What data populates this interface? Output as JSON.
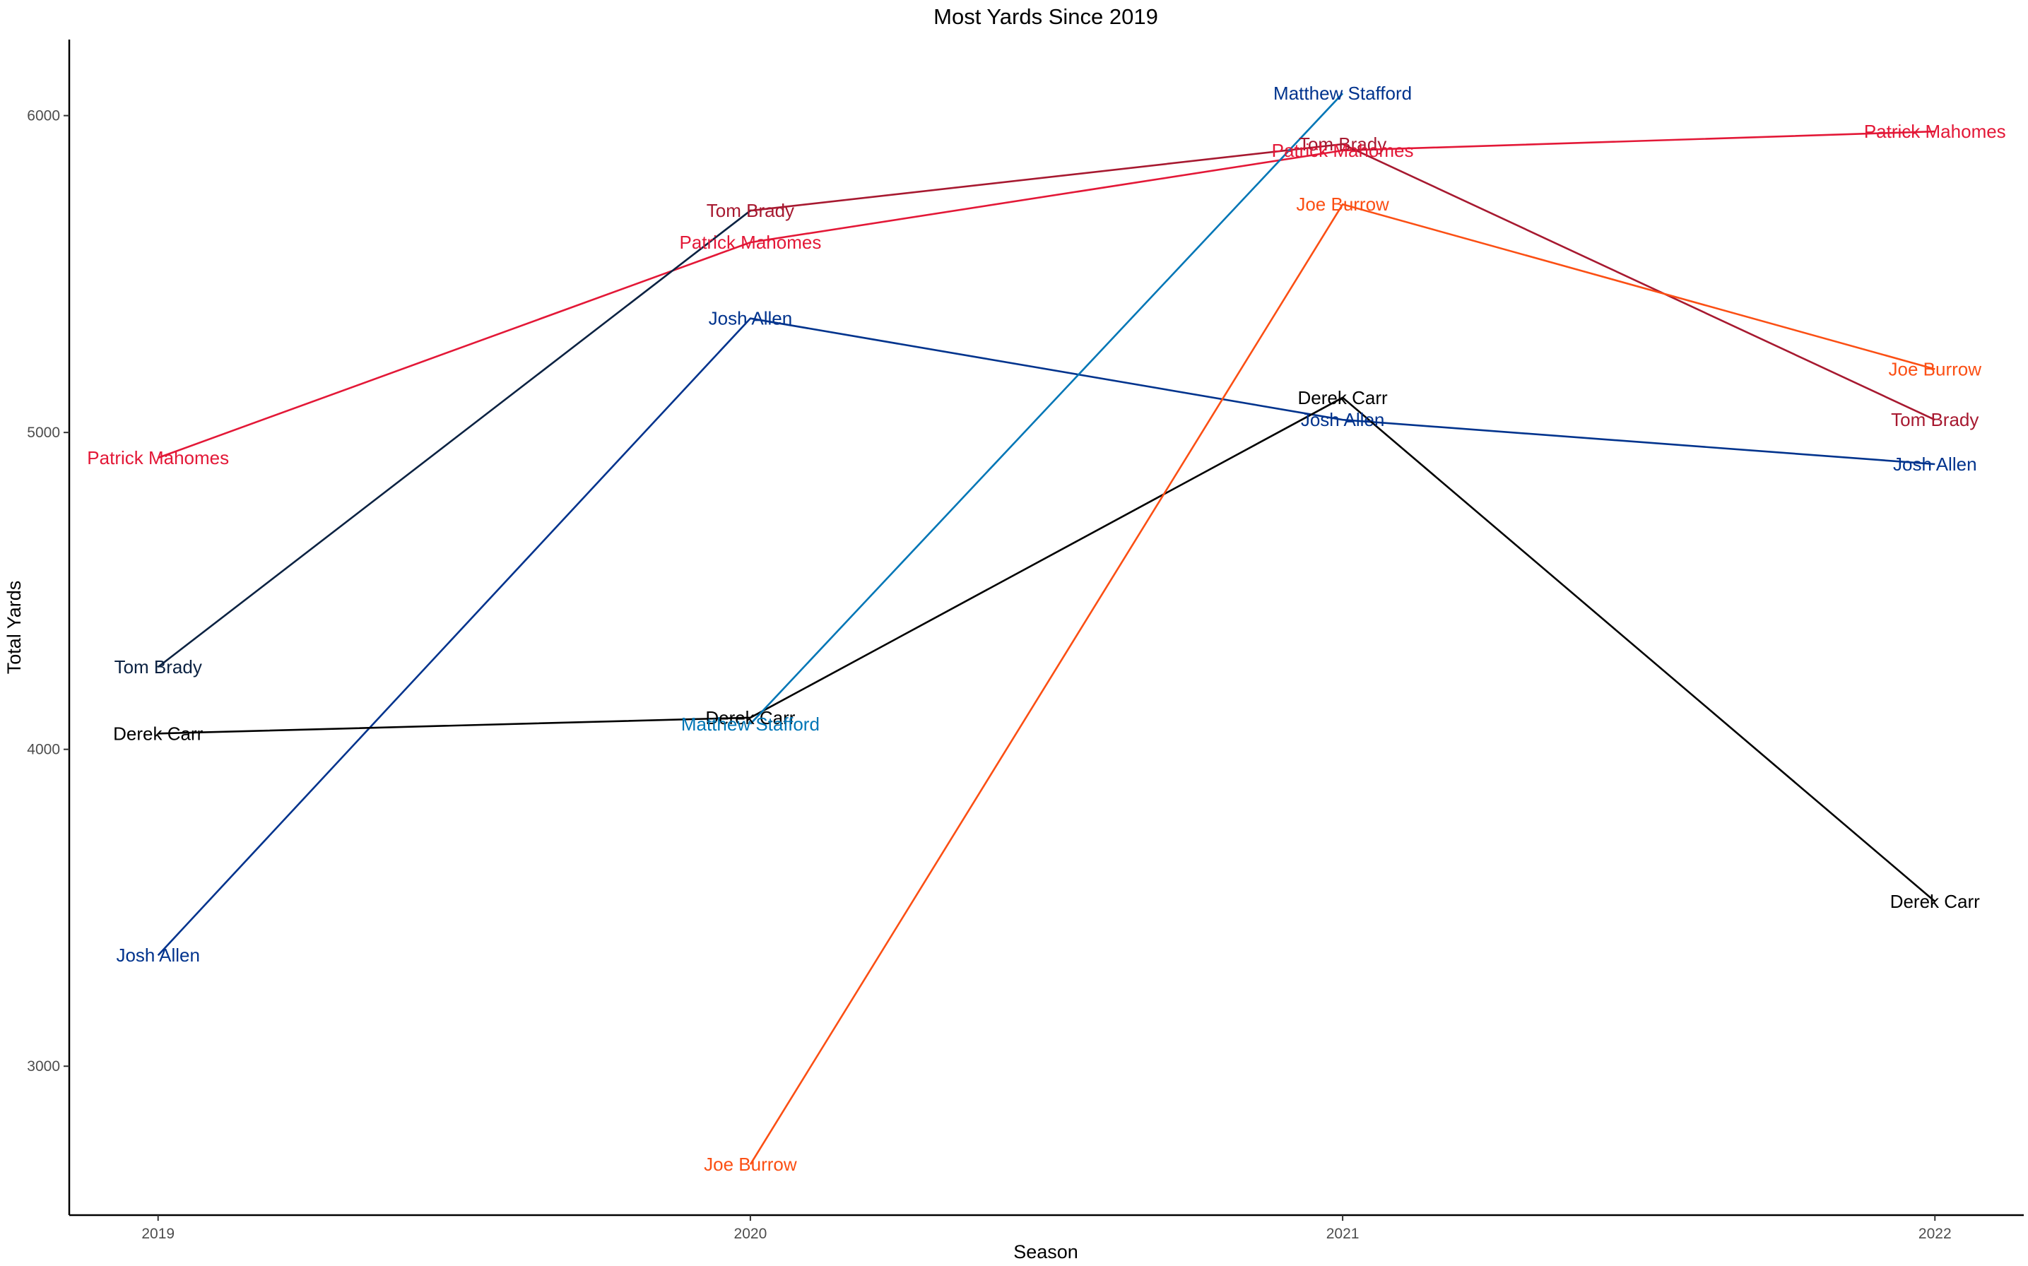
{
  "chart_data": {
    "type": "line",
    "title": "Most Yards Since 2019",
    "xlabel": "Season",
    "ylabel": "Total Yards",
    "x": [
      "2019",
      "2020",
      "2021",
      "2022"
    ],
    "xlim": [
      2018.85,
      2022.15
    ],
    "ylim": [
      2530,
      6240
    ],
    "y_ticks": [
      3000,
      4000,
      5000,
      6000
    ],
    "grid": false,
    "legend": "none",
    "series": [
      {
        "name": "Patrick Mahomes",
        "color": "#E31837",
        "points": [
          [
            2019,
            4920
          ],
          [
            2020,
            5600
          ],
          [
            2021,
            5890
          ],
          [
            2022,
            5950
          ]
        ]
      },
      {
        "name": "Tom Brady",
        "color": "#A71930",
        "points": [
          [
            2020,
            5700
          ],
          [
            2021,
            5910
          ],
          [
            2022,
            5040
          ]
        ]
      },
      {
        "name": "Tom Brady",
        "color": "#0B2242",
        "points": [
          [
            2019,
            4260
          ],
          [
            2020,
            5700
          ]
        ]
      },
      {
        "name": "Josh Allen",
        "color": "#00338D",
        "points": [
          [
            2019,
            3350
          ],
          [
            2020,
            5360
          ],
          [
            2021,
            5040
          ],
          [
            2022,
            4900
          ]
        ]
      },
      {
        "name": "Derek Carr",
        "color": "#000000",
        "points": [
          [
            2019,
            4050
          ],
          [
            2020,
            4100
          ],
          [
            2021,
            5110
          ],
          [
            2022,
            3520
          ]
        ]
      },
      {
        "name": "Matthew Stafford",
        "color": "#0076B6",
        "points": [
          [
            2020,
            4080
          ],
          [
            2021,
            6070
          ]
        ]
      },
      {
        "name": "Joe Burrow",
        "color": "#FB4F14",
        "points": [
          [
            2020,
            2690
          ],
          [
            2021,
            5720
          ],
          [
            2022,
            5200
          ]
        ]
      }
    ],
    "labels": [
      {
        "text": "Patrick Mahomes",
        "color": "#E31837",
        "x": 2019,
        "y": 4920
      },
      {
        "text": "Tom Brady",
        "color": "#0B2242",
        "x": 2019,
        "y": 4260
      },
      {
        "text": "Derek Carr",
        "color": "#000000",
        "x": 2019,
        "y": 4050
      },
      {
        "text": "Josh Allen",
        "color": "#00338D",
        "x": 2019,
        "y": 3350
      },
      {
        "text": "Tom Brady",
        "color": "#A71930",
        "x": 2020,
        "y": 5700
      },
      {
        "text": "Patrick Mahomes",
        "color": "#E31837",
        "x": 2020,
        "y": 5600
      },
      {
        "text": "Josh Allen",
        "color": "#00338D",
        "x": 2020,
        "y": 5360
      },
      {
        "text": "Derek Carr",
        "color": "#000000",
        "x": 2020,
        "y": 4100
      },
      {
        "text": "Matthew Stafford",
        "color": "#0076B6",
        "x": 2020,
        "y": 4080
      },
      {
        "text": "Joe Burrow",
        "color": "#FB4F14",
        "x": 2020,
        "y": 2690
      },
      {
        "text": "Matthew Stafford",
        "color": "#00338D",
        "x": 2021,
        "y": 6070
      },
      {
        "text": "Tom Brady",
        "color": "#A71930",
        "x": 2021,
        "y": 5910
      },
      {
        "text": "Patrick Mahomes",
        "color": "#E31837",
        "x": 2021,
        "y": 5890
      },
      {
        "text": "Joe Burrow",
        "color": "#FB4F14",
        "x": 2021,
        "y": 5720
      },
      {
        "text": "Derek Carr",
        "color": "#000000",
        "x": 2021,
        "y": 5110
      },
      {
        "text": "Josh Allen",
        "color": "#00338D",
        "x": 2021,
        "y": 5040
      },
      {
        "text": "Patrick Mahomes",
        "color": "#E31837",
        "x": 2022,
        "y": 5950
      },
      {
        "text": "Joe Burrow",
        "color": "#FB4F14",
        "x": 2022,
        "y": 5200
      },
      {
        "text": "Tom Brady",
        "color": "#A71930",
        "x": 2022,
        "y": 5040
      },
      {
        "text": "Josh Allen",
        "color": "#00338D",
        "x": 2022,
        "y": 4900
      },
      {
        "text": "Derek Carr",
        "color": "#000000",
        "x": 2022,
        "y": 3520
      }
    ]
  }
}
